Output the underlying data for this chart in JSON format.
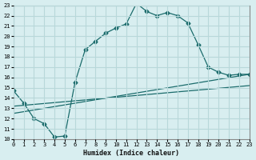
{
  "xlabel": "Humidex (Indice chaleur)",
  "bg_color": "#d8eef0",
  "grid_color": "#b8d8da",
  "line_color": "#1a6b6b",
  "xlim": [
    0,
    23
  ],
  "ylim": [
    10,
    23
  ],
  "xticks": [
    0,
    1,
    2,
    3,
    4,
    5,
    6,
    7,
    8,
    9,
    10,
    11,
    12,
    13,
    14,
    15,
    16,
    17,
    18,
    19,
    20,
    21,
    22,
    23
  ],
  "yticks": [
    10,
    11,
    12,
    13,
    14,
    15,
    16,
    17,
    18,
    19,
    20,
    21,
    22,
    23
  ],
  "line1_x": [
    0,
    1,
    2,
    3,
    4,
    5,
    6,
    7,
    8,
    9,
    10,
    11,
    12,
    13,
    14,
    15,
    16,
    17,
    18,
    19,
    20,
    21,
    22,
    23
  ],
  "line1_y": [
    14.7,
    13.5,
    12.0,
    11.5,
    10.2,
    10.3,
    15.5,
    18.7,
    19.5,
    20.3,
    20.8,
    21.2,
    23.2,
    22.4,
    22.0,
    22.3,
    22.0,
    21.3,
    19.2,
    17.0,
    16.5,
    16.2,
    16.3,
    16.3
  ],
  "line2_x": [
    0,
    23
  ],
  "line2_y": [
    12.5,
    16.3
  ],
  "line3_x": [
    0,
    23
  ],
  "line3_y": [
    13.2,
    15.2
  ]
}
